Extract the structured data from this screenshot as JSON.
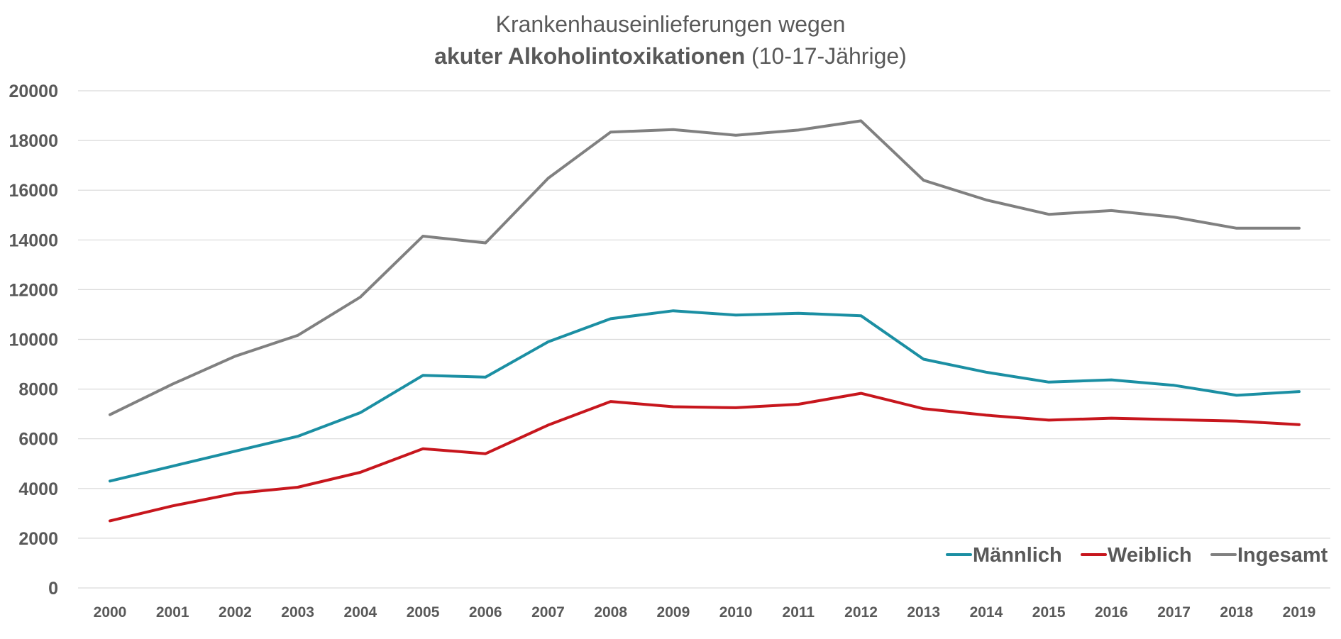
{
  "chart_data": {
    "type": "line",
    "title_line1": "Krankenhauseinlieferungen wegen",
    "title_line2_bold": "akuter Alkoholintoxikationen",
    "title_line2_rest": " (10-17-Jährige)",
    "xlabel": "",
    "ylabel": "",
    "ylim": [
      0,
      20000
    ],
    "y_ticks": [
      "0",
      "2000",
      "4000",
      "6000",
      "8000",
      "10000",
      "12000",
      "14000",
      "16000",
      "18000",
      "20000"
    ],
    "categories": [
      "2000",
      "2001",
      "2002",
      "2003",
      "2004",
      "2005",
      "2006",
      "2007",
      "2008",
      "2009",
      "2010",
      "2011",
      "2012",
      "2013",
      "2014",
      "2015",
      "2016",
      "2017",
      "2018",
      "2019"
    ],
    "grid": true,
    "legend_position": "bottom-right",
    "series": [
      {
        "name": "Männlich",
        "color": "#1b8fa3",
        "values": [
          4300,
          4900,
          5500,
          6100,
          7050,
          8550,
          8480,
          9900,
          10830,
          11150,
          10980,
          11050,
          10950,
          9200,
          8680,
          8280,
          8370,
          8150,
          7750,
          7900
        ]
      },
      {
        "name": "Weiblich",
        "color": "#c7161d",
        "values": [
          2700,
          3300,
          3800,
          4050,
          4650,
          5600,
          5400,
          6550,
          7500,
          7290,
          7250,
          7390,
          7830,
          7210,
          6950,
          6750,
          6830,
          6770,
          6710,
          6570
        ]
      },
      {
        "name": "Ingesamt",
        "color": "#808080",
        "values": [
          6970,
          8200,
          9320,
          10160,
          11700,
          14150,
          13880,
          16480,
          18340,
          18440,
          18210,
          18420,
          18790,
          16400,
          15610,
          15030,
          15180,
          14920,
          14470,
          14470
        ]
      }
    ]
  }
}
